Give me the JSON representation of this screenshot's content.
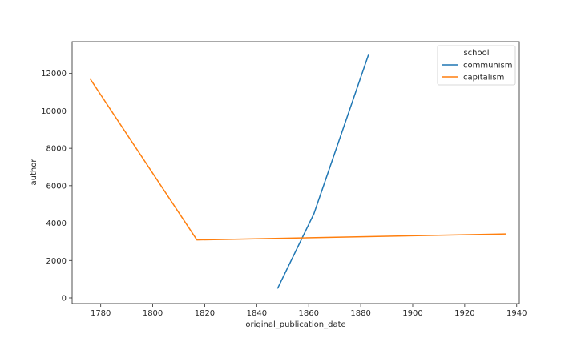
{
  "chart_data": {
    "type": "line",
    "title": "",
    "xlabel": "original_publication_date",
    "ylabel": "author",
    "xlim": [
      1769,
      1941
    ],
    "ylim": [
      -300,
      13700
    ],
    "xticks": [
      1780,
      1800,
      1820,
      1840,
      1860,
      1880,
      1900,
      1920,
      1940
    ],
    "yticks": [
      0,
      2000,
      4000,
      6000,
      8000,
      10000,
      12000
    ],
    "grid": false,
    "legend": {
      "title": "school",
      "placement": "top-right"
    },
    "series": [
      {
        "name": "communism",
        "color": "#1f77b4",
        "x": [
          1848,
          1862,
          1883
        ],
        "y": [
          500,
          4500,
          13000
        ]
      },
      {
        "name": "capitalism",
        "color": "#ff7f0e",
        "x": [
          1776,
          1817,
          1936
        ],
        "y": [
          11700,
          3100,
          3420
        ]
      }
    ]
  }
}
